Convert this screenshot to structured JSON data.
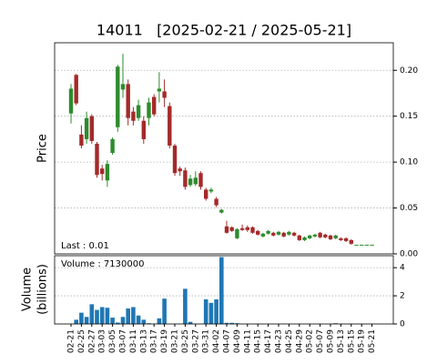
{
  "chart_data": {
    "type": "candlestick",
    "title": "14011   [2025-02-21 / 2025-05-21]",
    "ylabel": "Price",
    "annotation": "Last : 0.01",
    "up_color": "#2e8b2e",
    "down_color": "#a52a2a",
    "grid": true,
    "categories": [
      "02-21",
      null,
      "02-25",
      null,
      "02-27",
      null,
      "03-03",
      null,
      "03-05",
      null,
      "03-07",
      null,
      "03-11",
      null,
      "03-13",
      null,
      "03-17",
      null,
      "03-19",
      null,
      "03-21",
      null,
      "03-25",
      null,
      "03-27",
      null,
      "03-31",
      null,
      "04-02",
      null,
      "04-07",
      null,
      "04-09",
      null,
      "04-11",
      null,
      "04-15",
      null,
      "04-17",
      null,
      "04-23",
      null,
      "04-25",
      null,
      "04-29",
      null,
      "05-02",
      null,
      "05-07",
      null,
      "05-09",
      null,
      "05-13",
      null,
      "05-15",
      null,
      "05-19",
      null,
      "05-21"
    ],
    "open": [
      0.153,
      0.195,
      0.13,
      0.125,
      0.15,
      0.12,
      0.093,
      0.08,
      0.11,
      0.138,
      0.179,
      0.185,
      0.155,
      0.148,
      0.145,
      0.148,
      0.171,
      0.177,
      0.177,
      0.161,
      0.118,
      0.093,
      0.091,
      0.075,
      0.076,
      0.088,
      0.07,
      0.068,
      0.06,
      0.045,
      0.03,
      0.029,
      0.017,
      0.028,
      0.029,
      0.029,
      0.025,
      0.019,
      0.022,
      0.023,
      0.021,
      0.023,
      0.021,
      0.023,
      0.02,
      0.015,
      0.017,
      0.019,
      0.023,
      0.021,
      0.02,
      0.017,
      0.017,
      0.017,
      0.015,
      0.01,
      0.01,
      0.01,
      0.01
    ],
    "high": [
      0.185,
      0.196,
      0.14,
      0.155,
      0.152,
      0.122,
      0.097,
      0.102,
      0.127,
      0.206,
      0.218,
      0.19,
      0.16,
      0.168,
      0.15,
      0.17,
      0.174,
      0.198,
      0.19,
      0.165,
      0.12,
      0.095,
      0.094,
      0.086,
      0.09,
      0.09,
      0.072,
      0.072,
      0.062,
      0.049,
      0.036,
      0.03,
      0.028,
      0.032,
      0.031,
      0.03,
      0.026,
      0.023,
      0.026,
      0.024,
      0.025,
      0.024,
      0.025,
      0.024,
      0.021,
      0.019,
      0.021,
      0.022,
      0.024,
      0.022,
      0.021,
      0.021,
      0.018,
      0.018,
      0.016,
      0.01,
      0.01,
      0.01,
      0.01
    ],
    "low": [
      0.142,
      0.162,
      0.115,
      0.12,
      0.12,
      0.083,
      0.08,
      0.073,
      0.108,
      0.133,
      0.17,
      0.14,
      0.14,
      0.145,
      0.12,
      0.14,
      0.15,
      0.165,
      0.16,
      0.115,
      0.085,
      0.085,
      0.07,
      0.073,
      0.074,
      0.07,
      0.058,
      0.066,
      0.051,
      0.044,
      0.022,
      0.024,
      0.016,
      0.025,
      0.024,
      0.022,
      0.02,
      0.018,
      0.021,
      0.019,
      0.02,
      0.018,
      0.02,
      0.019,
      0.014,
      0.014,
      0.016,
      0.018,
      0.017,
      0.017,
      0.015,
      0.016,
      0.014,
      0.013,
      0.01,
      0.01,
      0.01,
      0.01,
      0.01
    ],
    "close": [
      0.18,
      0.164,
      0.118,
      0.148,
      0.123,
      0.086,
      0.087,
      0.098,
      0.125,
      0.204,
      0.185,
      0.148,
      0.145,
      0.162,
      0.125,
      0.165,
      0.152,
      0.18,
      0.17,
      0.118,
      0.088,
      0.09,
      0.073,
      0.082,
      0.083,
      0.073,
      0.06,
      0.07,
      0.053,
      0.048,
      0.023,
      0.025,
      0.027,
      0.026,
      0.026,
      0.023,
      0.021,
      0.022,
      0.025,
      0.02,
      0.024,
      0.019,
      0.024,
      0.02,
      0.015,
      0.018,
      0.02,
      0.021,
      0.018,
      0.018,
      0.016,
      0.02,
      0.015,
      0.014,
      0.011,
      0.01,
      0.01,
      0.01,
      0.01
    ],
    "ylim": [
      0,
      0.23
    ],
    "yticks": [
      {
        "value": 0,
        "label": "0.00"
      },
      0.05,
      {
        "value": 0.1,
        "label": "0.10"
      },
      0.15,
      {
        "value": 0.2,
        "label": "0.20"
      }
    ],
    "volume": {
      "type": "bar",
      "ylabel": [
        "Volume",
        "(billions)"
      ],
      "annotation": "Volume : 7130000",
      "color": "#1f77b4",
      "values": [
        0,
        0.3,
        0.8,
        0.5,
        1.4,
        1.0,
        1.2,
        1.15,
        0.45,
        0.1,
        0.5,
        1.1,
        1.2,
        0.6,
        0.3,
        0.05,
        0,
        0.4,
        1.8,
        0,
        0,
        0,
        2.5,
        0.15,
        0,
        0,
        1.75,
        1.5,
        1.75,
        4.75,
        0.08,
        0.08,
        0.05,
        0,
        0,
        0,
        0,
        0,
        0,
        0,
        0,
        0,
        0,
        0,
        0,
        0,
        0,
        0,
        0,
        0,
        0,
        0.05,
        0,
        0,
        0,
        0,
        0,
        0,
        0
      ],
      "ylim": [
        0,
        4.85
      ],
      "yticks": [
        0,
        2,
        4
      ]
    }
  }
}
